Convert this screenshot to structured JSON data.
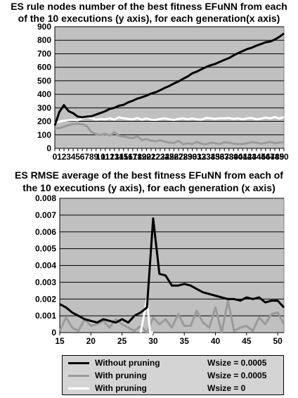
{
  "chart_data": [
    {
      "type": "line",
      "title_line1": "ES rule nodes number of the best fitness EFuNN from each",
      "title_line2": "of the 10 executions (y axis), for each generation(x axis)",
      "xlim": [
        0,
        50
      ],
      "ylim": [
        0,
        900
      ],
      "x_ticks": [
        0,
        1,
        2,
        3,
        4,
        5,
        6,
        7,
        8,
        9,
        10,
        11,
        12,
        13,
        14,
        15,
        16,
        17,
        18,
        19,
        20,
        21,
        22,
        23,
        24,
        25,
        26,
        27,
        28,
        29,
        30,
        31,
        32,
        33,
        34,
        35,
        36,
        37,
        38,
        39,
        40,
        41,
        42,
        43,
        44,
        45,
        46,
        47,
        48,
        49,
        50
      ],
      "y_ticks": [
        0,
        100,
        200,
        300,
        400,
        500,
        600,
        700,
        800,
        900
      ],
      "grid": "horizontal",
      "series": [
        {
          "color": "#000000",
          "x": [
            0,
            1,
            2,
            3,
            4,
            5,
            6,
            7,
            8,
            9,
            10,
            11,
            12,
            13,
            14,
            15,
            16,
            17,
            18,
            19,
            20,
            21,
            22,
            23,
            24,
            25,
            26,
            27,
            28,
            29,
            30,
            31,
            32,
            33,
            34,
            35,
            36,
            37,
            38,
            39,
            40,
            41,
            42,
            43,
            44,
            45,
            46,
            47,
            48,
            49,
            50
          ],
          "y": [
            170,
            270,
            320,
            275,
            260,
            235,
            230,
            235,
            238,
            250,
            262,
            275,
            292,
            300,
            315,
            322,
            340,
            352,
            368,
            378,
            390,
            405,
            415,
            430,
            448,
            462,
            480,
            495,
            515,
            532,
            555,
            568,
            585,
            602,
            615,
            625,
            640,
            655,
            668,
            688,
            705,
            720,
            735,
            745,
            760,
            772,
            785,
            790,
            805,
            825,
            850
          ]
        },
        {
          "color": "#9a9a9a",
          "x": [
            0,
            1,
            2,
            3,
            4,
            5,
            6,
            7,
            8,
            9,
            10,
            11,
            12,
            13,
            14,
            15,
            16,
            17,
            18,
            19,
            20,
            21,
            22,
            23,
            24,
            25,
            26,
            27,
            28,
            29,
            30,
            31,
            32,
            33,
            34,
            35,
            36,
            37,
            38,
            39,
            40,
            41,
            42,
            43,
            44,
            45,
            46,
            47,
            48,
            49,
            50
          ],
          "y": [
            150,
            150,
            160,
            172,
            180,
            182,
            178,
            165,
            120,
            105,
            100,
            108,
            95,
            118,
            92,
            88,
            80,
            76,
            90,
            62,
            68,
            58,
            52,
            60,
            50,
            42,
            40,
            55,
            30,
            38,
            32,
            48,
            35,
            30,
            42,
            38,
            32,
            46,
            42,
            35,
            32,
            33,
            38,
            46,
            42,
            35,
            40,
            48,
            38,
            42,
            45
          ]
        },
        {
          "color": "#ffffff",
          "x": [
            0,
            1,
            2,
            3,
            4,
            5,
            6,
            7,
            8,
            9,
            10,
            11,
            12,
            13,
            14,
            15,
            16,
            17,
            18,
            19,
            20,
            21,
            22,
            23,
            24,
            25,
            26,
            27,
            28,
            29,
            30,
            31,
            32,
            33,
            34,
            35,
            36,
            37,
            38,
            39,
            40,
            41,
            42,
            43,
            44,
            45,
            46,
            47,
            48,
            49,
            50
          ],
          "y": [
            190,
            198,
            205,
            208,
            210,
            208,
            222,
            232,
            225,
            212,
            218,
            215,
            222,
            212,
            230,
            222,
            218,
            215,
            225,
            212,
            222,
            212,
            210,
            218,
            222,
            215,
            210,
            218,
            222,
            215,
            222,
            215,
            212,
            225,
            222,
            218,
            222,
            222,
            225,
            218,
            222,
            215,
            222,
            225,
            215,
            220,
            228,
            222,
            232,
            220,
            232
          ]
        }
      ]
    },
    {
      "type": "line",
      "title_line1": "ES RMSE average of the best fitness EFuNN from each of",
      "title_line2": "the 10 executions (y axis), for each generation (x axis)",
      "xlim": [
        15,
        51
      ],
      "ylim": [
        0,
        0.008
      ],
      "x_ticks": [
        15,
        20,
        25,
        30,
        35,
        40,
        45,
        50
      ],
      "y_ticks": [
        "0",
        "0.001",
        "0.002",
        "0.003",
        "0.004",
        "0.005",
        "0.006",
        "0.007",
        "0.008"
      ],
      "grid": "horizontal",
      "series": [
        {
          "color": "#000000",
          "x": [
            15,
            16,
            17,
            18,
            19,
            20,
            21,
            22,
            23,
            24,
            25,
            26,
            27,
            28,
            29,
            30,
            31,
            32,
            33,
            34,
            35,
            36,
            37,
            38,
            39,
            40,
            41,
            42,
            43,
            44,
            45,
            46,
            47,
            48,
            49,
            50,
            51
          ],
          "y": [
            0.0017,
            0.0015,
            0.0012,
            0.001,
            0.0008,
            0.0007,
            0.0006,
            0.0008,
            0.0007,
            0.0006,
            0.0008,
            0.0006,
            0.001,
            0.0012,
            0.0015,
            0.0068,
            0.0035,
            0.0034,
            0.0028,
            0.0028,
            0.0029,
            0.0028,
            0.0026,
            0.0024,
            0.0023,
            0.0022,
            0.0021,
            0.002,
            0.002,
            0.0019,
            0.0021,
            0.002,
            0.0021,
            0.0018,
            0.0019,
            0.0019,
            0.0015
          ]
        },
        {
          "color": "#9a9a9a",
          "x": [
            15,
            16,
            17,
            18,
            19,
            20,
            21,
            22,
            23,
            24,
            25,
            26,
            27,
            28,
            29,
            30,
            31,
            32,
            33,
            34,
            35,
            36,
            37,
            38,
            39,
            40,
            41,
            42,
            43,
            44,
            45,
            46,
            47,
            48,
            49,
            50,
            51
          ],
          "y": [
            0.0001,
            0.0009,
            0.0003,
            0.0001,
            0.0008,
            0.0004,
            0.0005,
            0.0007,
            0.0003,
            0.0008,
            0.0005,
            0.0003,
            0.0001,
            0.0004,
            0.0,
            0.0009,
            0.0005,
            0.0008,
            0.0003,
            0.0011,
            0.0004,
            0.0004,
            0.0013,
            0.0006,
            0.0003,
            0.0015,
            0.0,
            0.0019,
            0.0001,
            0.0003,
            0.0004,
            0.0001,
            0.0009,
            0.0005,
            0.0011,
            0.0012,
            0.0005
          ]
        },
        {
          "color": "#ffffff",
          "x": [
            28,
            29,
            29.5,
            30
          ],
          "y": [
            0.0,
            0.002,
            0.0,
            0.0
          ]
        }
      ]
    }
  ],
  "legend": [
    {
      "label": "Without pruning",
      "wsize": "Wsize = 0.0005",
      "color": "#000000"
    },
    {
      "label": "With pruning",
      "wsize": "Wsize = 0.0005",
      "color": "#9a9a9a"
    },
    {
      "label": "With pruning",
      "wsize": "Wsize = 0",
      "color": "#ffffff"
    }
  ]
}
